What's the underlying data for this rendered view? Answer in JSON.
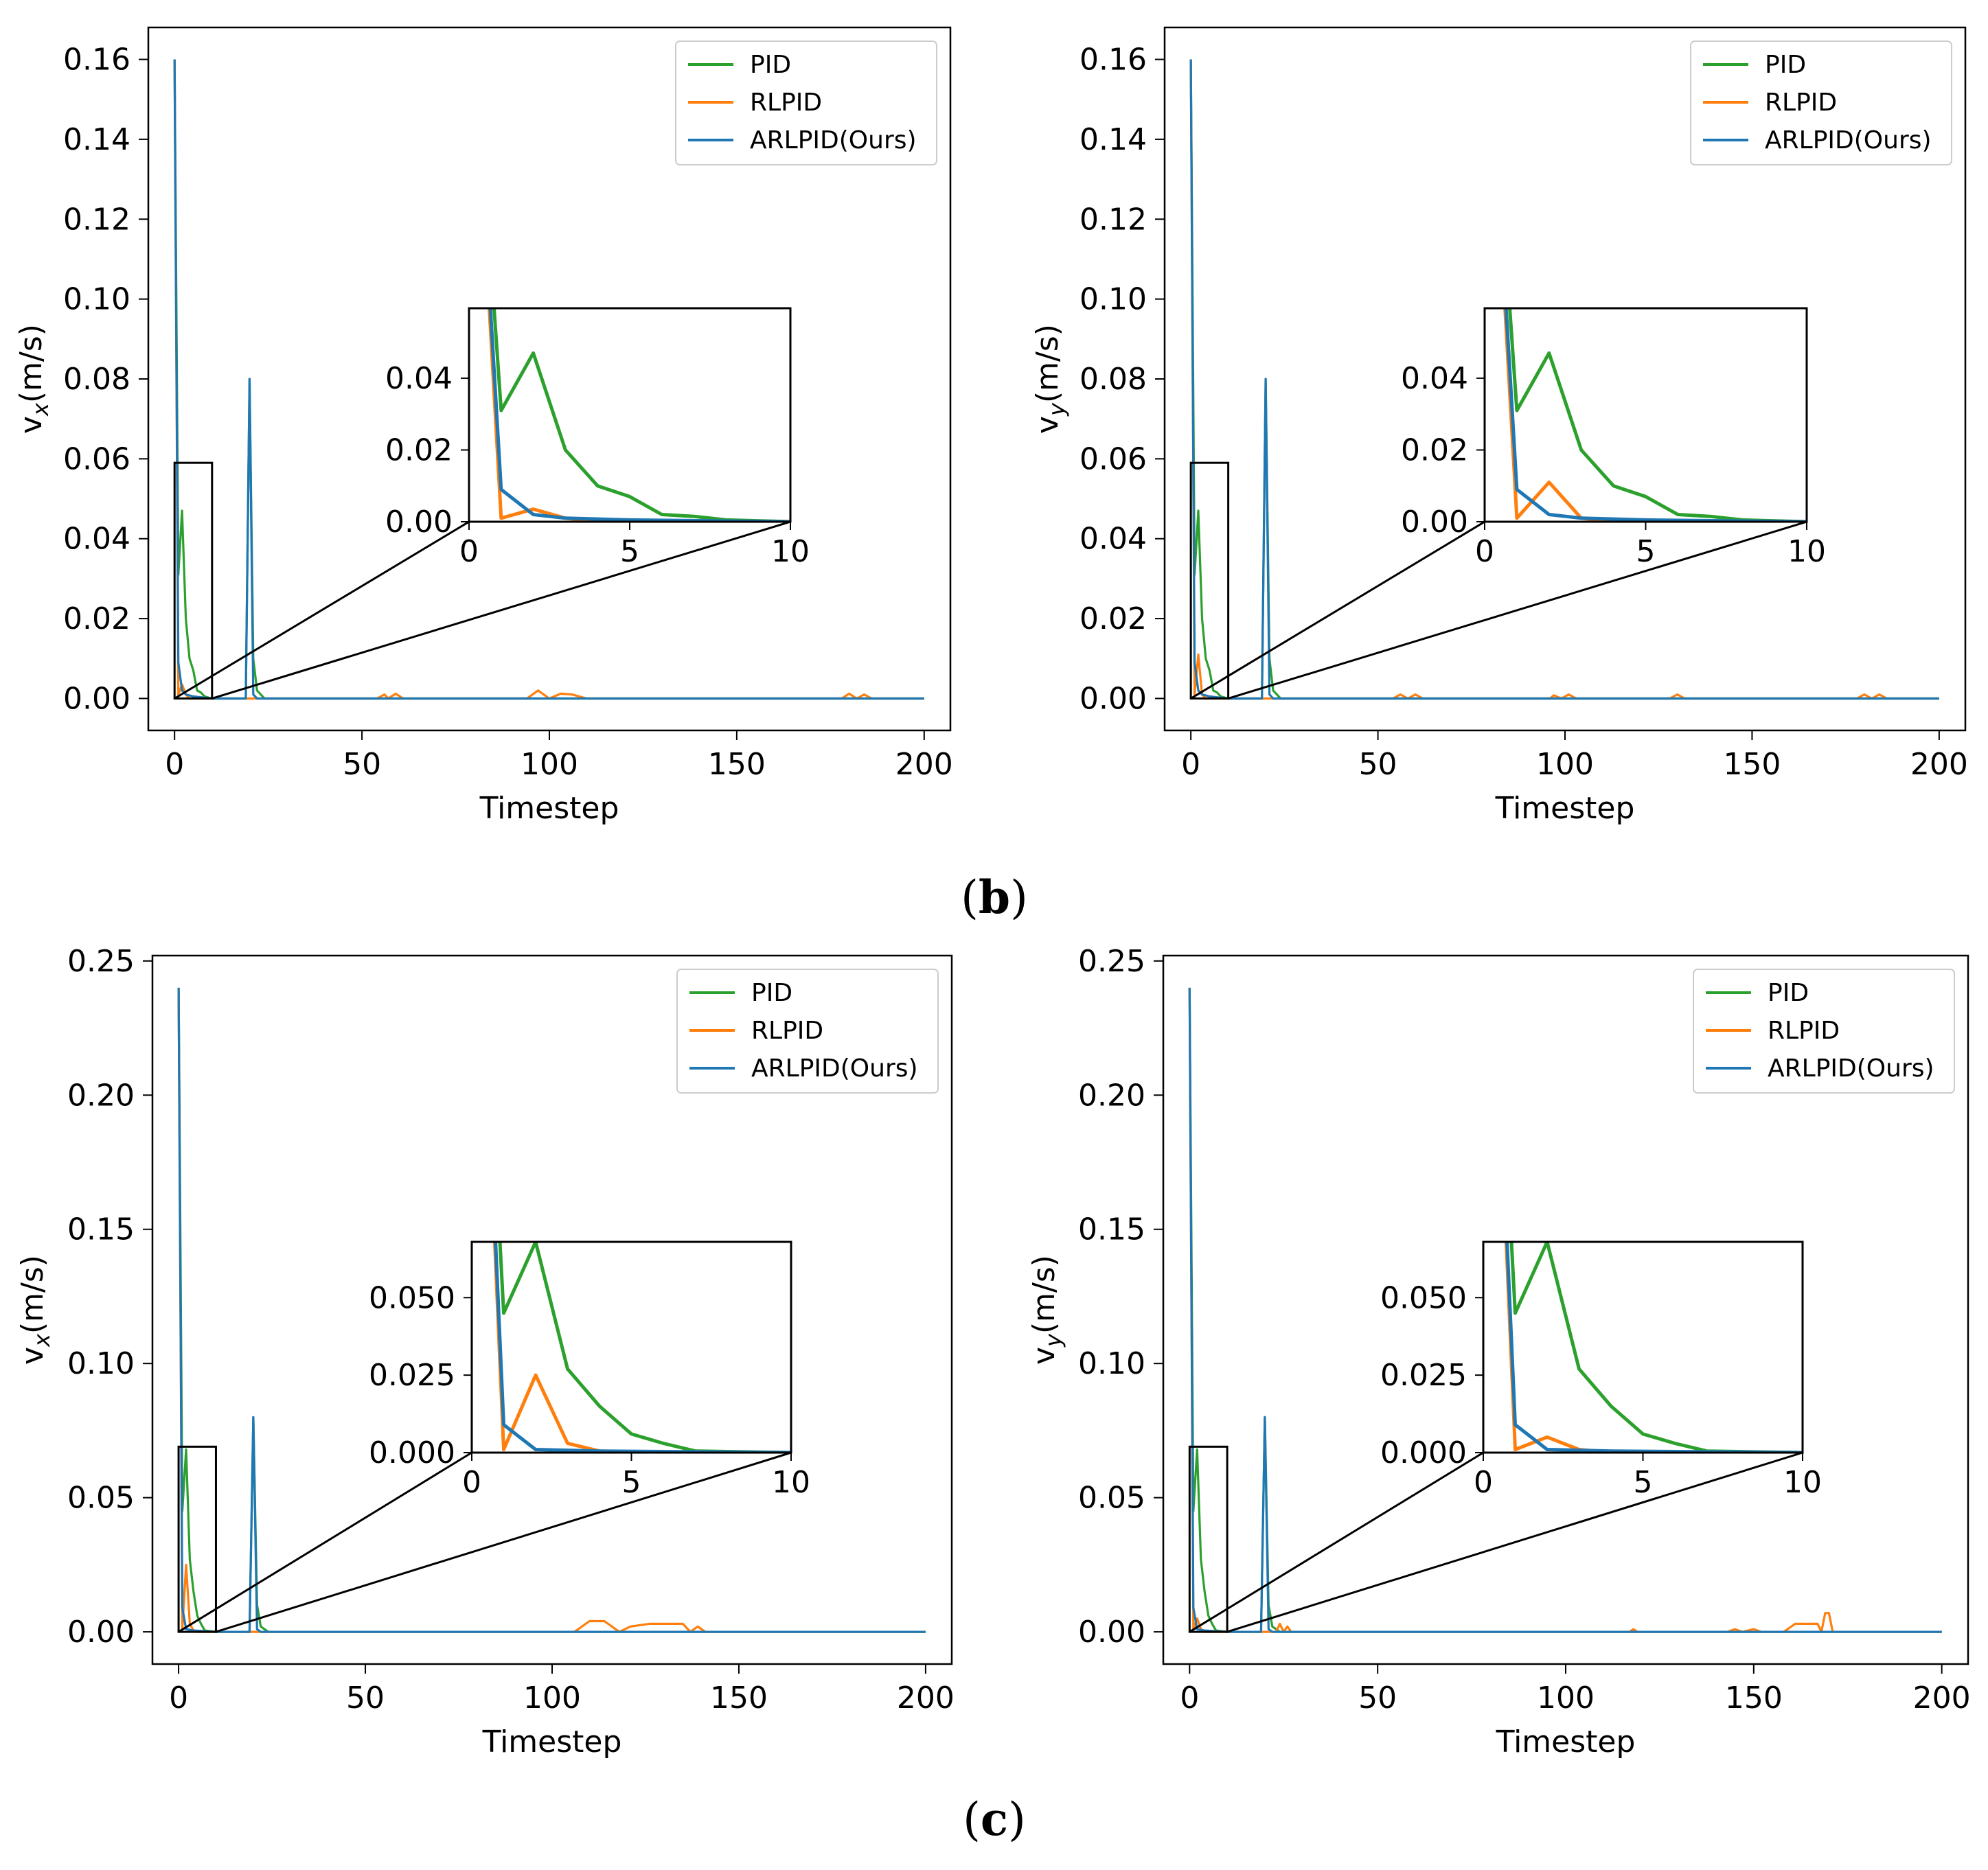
{
  "captions": [
    {
      "open": "(",
      "letter": "b",
      "close": ")"
    },
    {
      "open": "(",
      "letter": "c",
      "close": ")"
    }
  ],
  "colors": {
    "PID": "#2ca02c",
    "RLPID": "#ff7f0e",
    "ARLPID(Ours)": "#1f77b4"
  },
  "chart_data": [
    {
      "type": "line",
      "xlabel": "Timestep",
      "ylabel": {
        "base": "v",
        "sub": "x",
        "rest": "(m/s)"
      },
      "xlim": [
        -7,
        207
      ],
      "ylim": [
        -0.008,
        0.168
      ],
      "xticks": [
        0,
        50,
        100,
        150,
        200
      ],
      "yticks": [
        0.0,
        0.02,
        0.04,
        0.06,
        0.08,
        0.1,
        0.12,
        0.14,
        0.16
      ],
      "ytick_labels": [
        "0.00",
        "0.02",
        "0.04",
        "0.06",
        "0.08",
        "0.10",
        "0.12",
        "0.14",
        "0.16"
      ],
      "legend": [
        "PID",
        "RLPID",
        "ARLPID(Ours)"
      ],
      "legend_position": "top-right",
      "series": [
        {
          "name": "PID",
          "points": [
            [
              0,
              0.16
            ],
            [
              1,
              0.031
            ],
            [
              2,
              0.047
            ],
            [
              3,
              0.02
            ],
            [
              4,
              0.01
            ],
            [
              5,
              0.007
            ],
            [
              6,
              0.002
            ],
            [
              7,
              0.0015
            ],
            [
              8,
              0.0005
            ],
            [
              10,
              0
            ],
            [
              19,
              0
            ],
            [
              20,
              0.08
            ],
            [
              21,
              0.01
            ],
            [
              22,
              0.002
            ],
            [
              24,
              0
            ],
            [
              200,
              0
            ]
          ]
        },
        {
          "name": "RLPID",
          "points": [
            [
              0,
              0.16
            ],
            [
              1,
              0.001
            ],
            [
              2,
              0.0035
            ],
            [
              3,
              0.001
            ],
            [
              4,
              0
            ],
            [
              54,
              0
            ],
            [
              56,
              0.001
            ],
            [
              57,
              0
            ],
            [
              59,
              0.0012
            ],
            [
              61,
              0
            ],
            [
              94,
              0
            ],
            [
              97,
              0.002
            ],
            [
              100,
              0
            ],
            [
              103,
              0.0012
            ],
            [
              106,
              0.001
            ],
            [
              110,
              0
            ],
            [
              178,
              0
            ],
            [
              180,
              0.0012
            ],
            [
              182,
              0
            ],
            [
              184,
              0.001
            ],
            [
              186,
              0
            ],
            [
              200,
              0
            ]
          ]
        },
        {
          "name": "ARLPID(Ours)",
          "points": [
            [
              0,
              0.16
            ],
            [
              1,
              0.009
            ],
            [
              2,
              0.002
            ],
            [
              3,
              0.001
            ],
            [
              5,
              0.0005
            ],
            [
              10,
              0
            ],
            [
              19,
              0
            ],
            [
              20,
              0.08
            ],
            [
              21,
              0.001
            ],
            [
              22,
              0
            ],
            [
              200,
              0
            ]
          ]
        }
      ],
      "zoom_box": {
        "x": [
          0,
          10
        ],
        "y": [
          0,
          0.059
        ]
      },
      "inset": {
        "xlim": [
          0,
          10
        ],
        "ylim": [
          0,
          0.0595
        ],
        "xticks": [
          0,
          5,
          10
        ],
        "yticks": [
          0.0,
          0.02,
          0.04
        ],
        "ytick_labels": [
          "0.00",
          "0.02",
          "0.04"
        ]
      }
    },
    {
      "type": "line",
      "xlabel": "Timestep",
      "ylabel": {
        "base": "v",
        "sub": "y",
        "rest": "(m/s)"
      },
      "xlim": [
        -7,
        207
      ],
      "ylim": [
        -0.008,
        0.168
      ],
      "xticks": [
        0,
        50,
        100,
        150,
        200
      ],
      "yticks": [
        0.0,
        0.02,
        0.04,
        0.06,
        0.08,
        0.1,
        0.12,
        0.14,
        0.16
      ],
      "ytick_labels": [
        "0.00",
        "0.02",
        "0.04",
        "0.06",
        "0.08",
        "0.10",
        "0.12",
        "0.14",
        "0.16"
      ],
      "legend": [
        "PID",
        "RLPID",
        "ARLPID(Ours)"
      ],
      "legend_position": "top-right",
      "series": [
        {
          "name": "PID",
          "points": [
            [
              0,
              0.16
            ],
            [
              1,
              0.031
            ],
            [
              2,
              0.047
            ],
            [
              3,
              0.02
            ],
            [
              4,
              0.01
            ],
            [
              5,
              0.007
            ],
            [
              6,
              0.002
            ],
            [
              7,
              0.0015
            ],
            [
              8,
              0.0005
            ],
            [
              10,
              0
            ],
            [
              19,
              0
            ],
            [
              20,
              0.08
            ],
            [
              21,
              0.01
            ],
            [
              22,
              0.002
            ],
            [
              24,
              0
            ],
            [
              200,
              0
            ]
          ]
        },
        {
          "name": "RLPID",
          "points": [
            [
              0,
              0.16
            ],
            [
              1,
              0.001
            ],
            [
              2,
              0.011
            ],
            [
              3,
              0.001
            ],
            [
              4,
              0
            ],
            [
              54,
              0
            ],
            [
              56,
              0.001
            ],
            [
              58,
              0
            ],
            [
              60,
              0.001
            ],
            [
              62,
              0
            ],
            [
              96,
              0
            ],
            [
              97,
              0.0008
            ],
            [
              99,
              0
            ],
            [
              101,
              0.001
            ],
            [
              103,
              0
            ],
            [
              128,
              0
            ],
            [
              130,
              0.001
            ],
            [
              132,
              0
            ],
            [
              178,
              0
            ],
            [
              180,
              0.001
            ],
            [
              182,
              0
            ],
            [
              184,
              0.001
            ],
            [
              186,
              0
            ],
            [
              200,
              0
            ]
          ]
        },
        {
          "name": "ARLPID(Ours)",
          "points": [
            [
              0,
              0.16
            ],
            [
              1,
              0.009
            ],
            [
              2,
              0.002
            ],
            [
              3,
              0.001
            ],
            [
              5,
              0.0005
            ],
            [
              10,
              0
            ],
            [
              19,
              0
            ],
            [
              20,
              0.08
            ],
            [
              21,
              0.001
            ],
            [
              22,
              0
            ],
            [
              200,
              0
            ]
          ]
        }
      ],
      "zoom_box": {
        "x": [
          0,
          10
        ],
        "y": [
          0,
          0.059
        ]
      },
      "inset": {
        "xlim": [
          0,
          10
        ],
        "ylim": [
          0,
          0.0595
        ],
        "xticks": [
          0,
          5,
          10
        ],
        "yticks": [
          0.0,
          0.02,
          0.04
        ],
        "ytick_labels": [
          "0.00",
          "0.02",
          "0.04"
        ]
      }
    },
    {
      "type": "line",
      "xlabel": "Timestep",
      "ylabel": {
        "base": "v",
        "sub": "x",
        "rest": "(m/s)"
      },
      "xlim": [
        -7,
        207
      ],
      "ylim": [
        -0.012,
        0.252
      ],
      "xticks": [
        0,
        50,
        100,
        150,
        200
      ],
      "yticks": [
        0.0,
        0.05,
        0.1,
        0.15,
        0.2,
        0.25
      ],
      "ytick_labels": [
        "0.00",
        "0.05",
        "0.10",
        "0.15",
        "0.20",
        "0.25"
      ],
      "legend": [
        "PID",
        "RLPID",
        "ARLPID(Ours)"
      ],
      "legend_position": "top-right",
      "series": [
        {
          "name": "PID",
          "points": [
            [
              0,
              0.24
            ],
            [
              1,
              0.045
            ],
            [
              2,
              0.068
            ],
            [
              3,
              0.027
            ],
            [
              4,
              0.015
            ],
            [
              5,
              0.006
            ],
            [
              6,
              0.003
            ],
            [
              7,
              0.0005
            ],
            [
              10,
              0
            ],
            [
              19,
              0
            ],
            [
              20,
              0.08
            ],
            [
              21,
              0.01
            ],
            [
              22,
              0.002
            ],
            [
              24,
              0
            ],
            [
              200,
              0
            ]
          ]
        },
        {
          "name": "RLPID",
          "points": [
            [
              0,
              0.24
            ],
            [
              1,
              0.001
            ],
            [
              2,
              0.025
            ],
            [
              3,
              0.003
            ],
            [
              4,
              0.0005
            ],
            [
              5,
              0
            ],
            [
              106,
              0
            ],
            [
              110,
              0.004
            ],
            [
              114,
              0.004
            ],
            [
              118,
              0
            ],
            [
              121,
              0.002
            ],
            [
              126,
              0.003
            ],
            [
              135,
              0.003
            ],
            [
              137,
              0
            ],
            [
              139,
              0.002
            ],
            [
              141,
              0
            ],
            [
              200,
              0
            ]
          ]
        },
        {
          "name": "ARLPID(Ours)",
          "points": [
            [
              0,
              0.24
            ],
            [
              1,
              0.009
            ],
            [
              2,
              0.001
            ],
            [
              4,
              0.0005
            ],
            [
              10,
              0
            ],
            [
              19,
              0
            ],
            [
              20,
              0.08
            ],
            [
              21,
              0.001
            ],
            [
              22,
              0
            ],
            [
              200,
              0
            ]
          ]
        }
      ],
      "zoom_box": {
        "x": [
          0,
          10
        ],
        "y": [
          0,
          0.069
        ]
      },
      "inset": {
        "xlim": [
          0,
          10
        ],
        "ylim": [
          0,
          0.068
        ],
        "xticks": [
          0,
          5,
          10
        ],
        "yticks": [
          0.0,
          0.025,
          0.05
        ],
        "ytick_labels": [
          "0.000",
          "0.025",
          "0.050"
        ]
      }
    },
    {
      "type": "line",
      "xlabel": "Timestep",
      "ylabel": {
        "base": "v",
        "sub": "y",
        "rest": "(m/s)"
      },
      "xlim": [
        -7,
        207
      ],
      "ylim": [
        -0.012,
        0.252
      ],
      "xticks": [
        0,
        50,
        100,
        150,
        200
      ],
      "yticks": [
        0.0,
        0.05,
        0.1,
        0.15,
        0.2,
        0.25
      ],
      "ytick_labels": [
        "0.00",
        "0.05",
        "0.10",
        "0.15",
        "0.20",
        "0.25"
      ],
      "legend": [
        "PID",
        "RLPID",
        "ARLPID(Ours)"
      ],
      "legend_position": "top-right",
      "series": [
        {
          "name": "PID",
          "points": [
            [
              0,
              0.24
            ],
            [
              1,
              0.045
            ],
            [
              2,
              0.068
            ],
            [
              3,
              0.027
            ],
            [
              4,
              0.015
            ],
            [
              5,
              0.006
            ],
            [
              6,
              0.003
            ],
            [
              7,
              0.0005
            ],
            [
              10,
              0
            ],
            [
              19,
              0
            ],
            [
              20,
              0.08
            ],
            [
              21,
              0.01
            ],
            [
              22,
              0.002
            ],
            [
              24,
              0
            ],
            [
              200,
              0
            ]
          ]
        },
        {
          "name": "RLPID",
          "points": [
            [
              0,
              0.24
            ],
            [
              1,
              0.001
            ],
            [
              2,
              0.005
            ],
            [
              3,
              0.001
            ],
            [
              4,
              0
            ],
            [
              23,
              0
            ],
            [
              24,
              0.003
            ],
            [
              25,
              0
            ],
            [
              26,
              0.002
            ],
            [
              27,
              0
            ],
            [
              117,
              0
            ],
            [
              118,
              0.001
            ],
            [
              119,
              0
            ],
            [
              143,
              0
            ],
            [
              145,
              0.001
            ],
            [
              147,
              0
            ],
            [
              150,
              0.001
            ],
            [
              152,
              0
            ],
            [
              158,
              0
            ],
            [
              161,
              0.003
            ],
            [
              167,
              0.003
            ],
            [
              168,
              0
            ],
            [
              169,
              0.007
            ],
            [
              170,
              0.007
            ],
            [
              171,
              0
            ],
            [
              200,
              0
            ]
          ]
        },
        {
          "name": "ARLPID(Ours)",
          "points": [
            [
              0,
              0.24
            ],
            [
              1,
              0.009
            ],
            [
              2,
              0.001
            ],
            [
              4,
              0.0005
            ],
            [
              10,
              0
            ],
            [
              19,
              0
            ],
            [
              20,
              0.08
            ],
            [
              21,
              0.001
            ],
            [
              22,
              0
            ],
            [
              200,
              0
            ]
          ]
        }
      ],
      "zoom_box": {
        "x": [
          0,
          10
        ],
        "y": [
          0,
          0.069
        ]
      },
      "inset": {
        "xlim": [
          0,
          10
        ],
        "ylim": [
          0,
          0.068
        ],
        "xticks": [
          0,
          5,
          10
        ],
        "yticks": [
          0.0,
          0.025,
          0.05
        ],
        "ytick_labels": [
          "0.000",
          "0.025",
          "0.050"
        ]
      }
    }
  ]
}
